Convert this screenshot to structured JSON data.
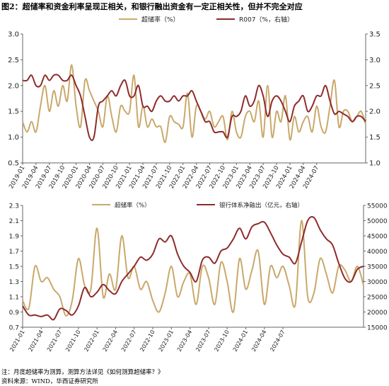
{
  "figure_title": "图2：超储率和资金利率呈现正相关，和银行融出资金有一定正相关性，但并不完全对应",
  "notes": [
    "注：月度超储率为测算，测算方法详见《如何测算超储率？》",
    "资料来源：WIND，华西证券研究所"
  ],
  "colors": {
    "excess_reserve": "#c9a86a",
    "second_series": "#8e2b2b",
    "axis": "#666666"
  },
  "chart_data": [
    {
      "type": "line",
      "title": "",
      "legend_position": "top-center",
      "grid": false,
      "x_start": "2019-01",
      "xticks": [
        "2019-01",
        "2019-04",
        "2019-07",
        "2019-10",
        "2020-01",
        "2020-04",
        "2020-07",
        "2020-10",
        "2021-01",
        "2021-04",
        "2021-07",
        "2021-10",
        "2022-01",
        "2022-04",
        "2022-07",
        "2022-10",
        "2023-01",
        "2023-04",
        "2023-07",
        "2023-10",
        "2024-01",
        "2024-04",
        "2024-07"
      ],
      "ylim": [
        0.5,
        3.0
      ],
      "yticks": [
        "0.5",
        "1.0",
        "1.5",
        "2.0",
        "2.5",
        "3.0"
      ],
      "y2lim": [
        1.0,
        3.5
      ],
      "y2ticks": [
        "1.0",
        "1.5",
        "2.0",
        "2.5",
        "3.0",
        "3.5"
      ],
      "series": [
        {
          "name": "超储率（%）",
          "axis": "left",
          "color": "#c9a86a",
          "values": [
            1.3,
            1.1,
            1.3,
            1.1,
            1.6,
            2.0,
            1.5,
            1.9,
            1.6,
            2.0,
            1.7,
            2.4,
            1.6,
            1.2,
            2.1,
            1.9,
            1.7,
            1.5,
            1.2,
            1.8,
            1.4,
            1.1,
            1.6,
            1.5,
            1.5,
            2.2,
            1.2,
            1.6,
            1.2,
            1.35,
            1.2,
            1.2,
            0.9,
            1.4,
            1.3,
            1.25,
            1.2,
            1.85,
            1.0,
            1.6,
            1.5,
            1.35,
            1.5,
            1.2,
            1.3,
            1.4,
            0.95,
            1.5,
            1.1,
            1.0,
            1.4,
            1.5,
            1.3,
            1.7,
            1.0,
            2.0,
            1.0,
            1.5,
            1.3,
            1.8,
            0.95,
            1.4,
            1.1,
            1.3,
            1.4,
            1.1,
            1.6,
            1.2,
            1.1,
            1.6,
            2.1,
            1.2,
            1.5,
            1.5,
            1.3,
            1.4,
            1.5,
            1.25
          ]
        },
        {
          "name": "R007（%，右轴）",
          "axis": "right",
          "color": "#8e2b2b",
          "values": [
            2.6,
            2.6,
            2.7,
            2.5,
            2.5,
            2.7,
            2.6,
            2.7,
            2.7,
            2.6,
            2.6,
            2.7,
            2.5,
            2.3,
            1.9,
            1.5,
            1.5,
            2.1,
            2.2,
            2.3,
            2.4,
            2.3,
            2.5,
            2.6,
            2.3,
            2.3,
            2.5,
            2.1,
            2.1,
            2.0,
            2.2,
            2.3,
            2.2,
            2.2,
            2.3,
            2.2,
            2.3,
            2.3,
            2.4,
            2.2,
            2.0,
            1.8,
            1.8,
            1.6,
            1.6,
            1.6,
            1.5,
            1.9,
            1.9,
            2.0,
            2.3,
            2.1,
            2.2,
            2.5,
            2.3,
            1.9,
            2.2,
            2.3,
            2.2,
            2.0,
            1.8,
            2.1,
            2.2,
            2.3,
            2.0,
            2.1,
            2.3,
            2.3,
            2.5,
            2.2,
            1.95,
            2.0,
            1.95,
            1.9,
            1.8,
            1.9,
            1.9,
            1.8
          ]
        }
      ]
    },
    {
      "type": "line",
      "title": "",
      "legend_position": "top-center",
      "grid": false,
      "x_start": "2021-01",
      "xticks": [
        "2021-01",
        "2021-04",
        "2021-07",
        "2021-10",
        "2022-01",
        "2022-04",
        "2022-07",
        "2022-10",
        "2023-01",
        "2023-04",
        "2023-07",
        "2023-10",
        "2024-01",
        "2024-04",
        "2024-07"
      ],
      "ylim": [
        0.7,
        2.3
      ],
      "yticks": [
        "0.7",
        "0.9",
        "1.1",
        "1.3",
        "1.5",
        "1.7",
        "1.9",
        "2.1",
        "2.3"
      ],
      "y2lim": [
        15000,
        55000
      ],
      "y2ticks": [
        "15000",
        "20000",
        "25000",
        "30000",
        "35000",
        "40000",
        "45000",
        "50000",
        "55000"
      ],
      "series": [
        {
          "name": "超储率（%）",
          "axis": "left",
          "color": "#c9a86a",
          "values": [
            1.05,
            0.95,
            1.5,
            1.3,
            1.35,
            1.2,
            1.1,
            0.85,
            1.05,
            1.6,
            1.25,
            1.2,
            2.0,
            1.1,
            1.4,
            1.2,
            1.9,
            1.35,
            1.5,
            1.2,
            1.3,
            1.05,
            0.9,
            1.15,
            1.5,
            1.1,
            1.3,
            1.4,
            1.0,
            1.5,
            1.35,
            1.0,
            1.55,
            1.3,
            0.9,
            1.6,
            1.2,
            1.45,
            1.7,
            1.0,
            1.5,
            1.35,
            1.5,
            1.25,
            1.0,
            2.1,
            1.1,
            1.15,
            1.6,
            1.4,
            1.15,
            1.5,
            1.45,
            1.3,
            1.5,
            1.25
          ]
        },
        {
          "name": "银行体系净融出（亿元，右轴）",
          "axis": "right",
          "color": "#8e2b2b",
          "values": [
            22000,
            19000,
            19000,
            18500,
            19000,
            17500,
            21000,
            20500,
            19000,
            22000,
            28000,
            25000,
            26500,
            29000,
            27000,
            26000,
            30000,
            32500,
            35000,
            38000,
            37000,
            39000,
            44000,
            43000,
            45000,
            39000,
            35000,
            33000,
            30000,
            37000,
            38000,
            36000,
            40000,
            41000,
            44000,
            47500,
            44000,
            48000,
            49000,
            49500,
            46000,
            42000,
            39000,
            38000,
            36000,
            43000,
            50000,
            51000,
            47000,
            44000,
            42000,
            36000,
            31000,
            30000,
            34000,
            35000
          ]
        }
      ]
    }
  ]
}
